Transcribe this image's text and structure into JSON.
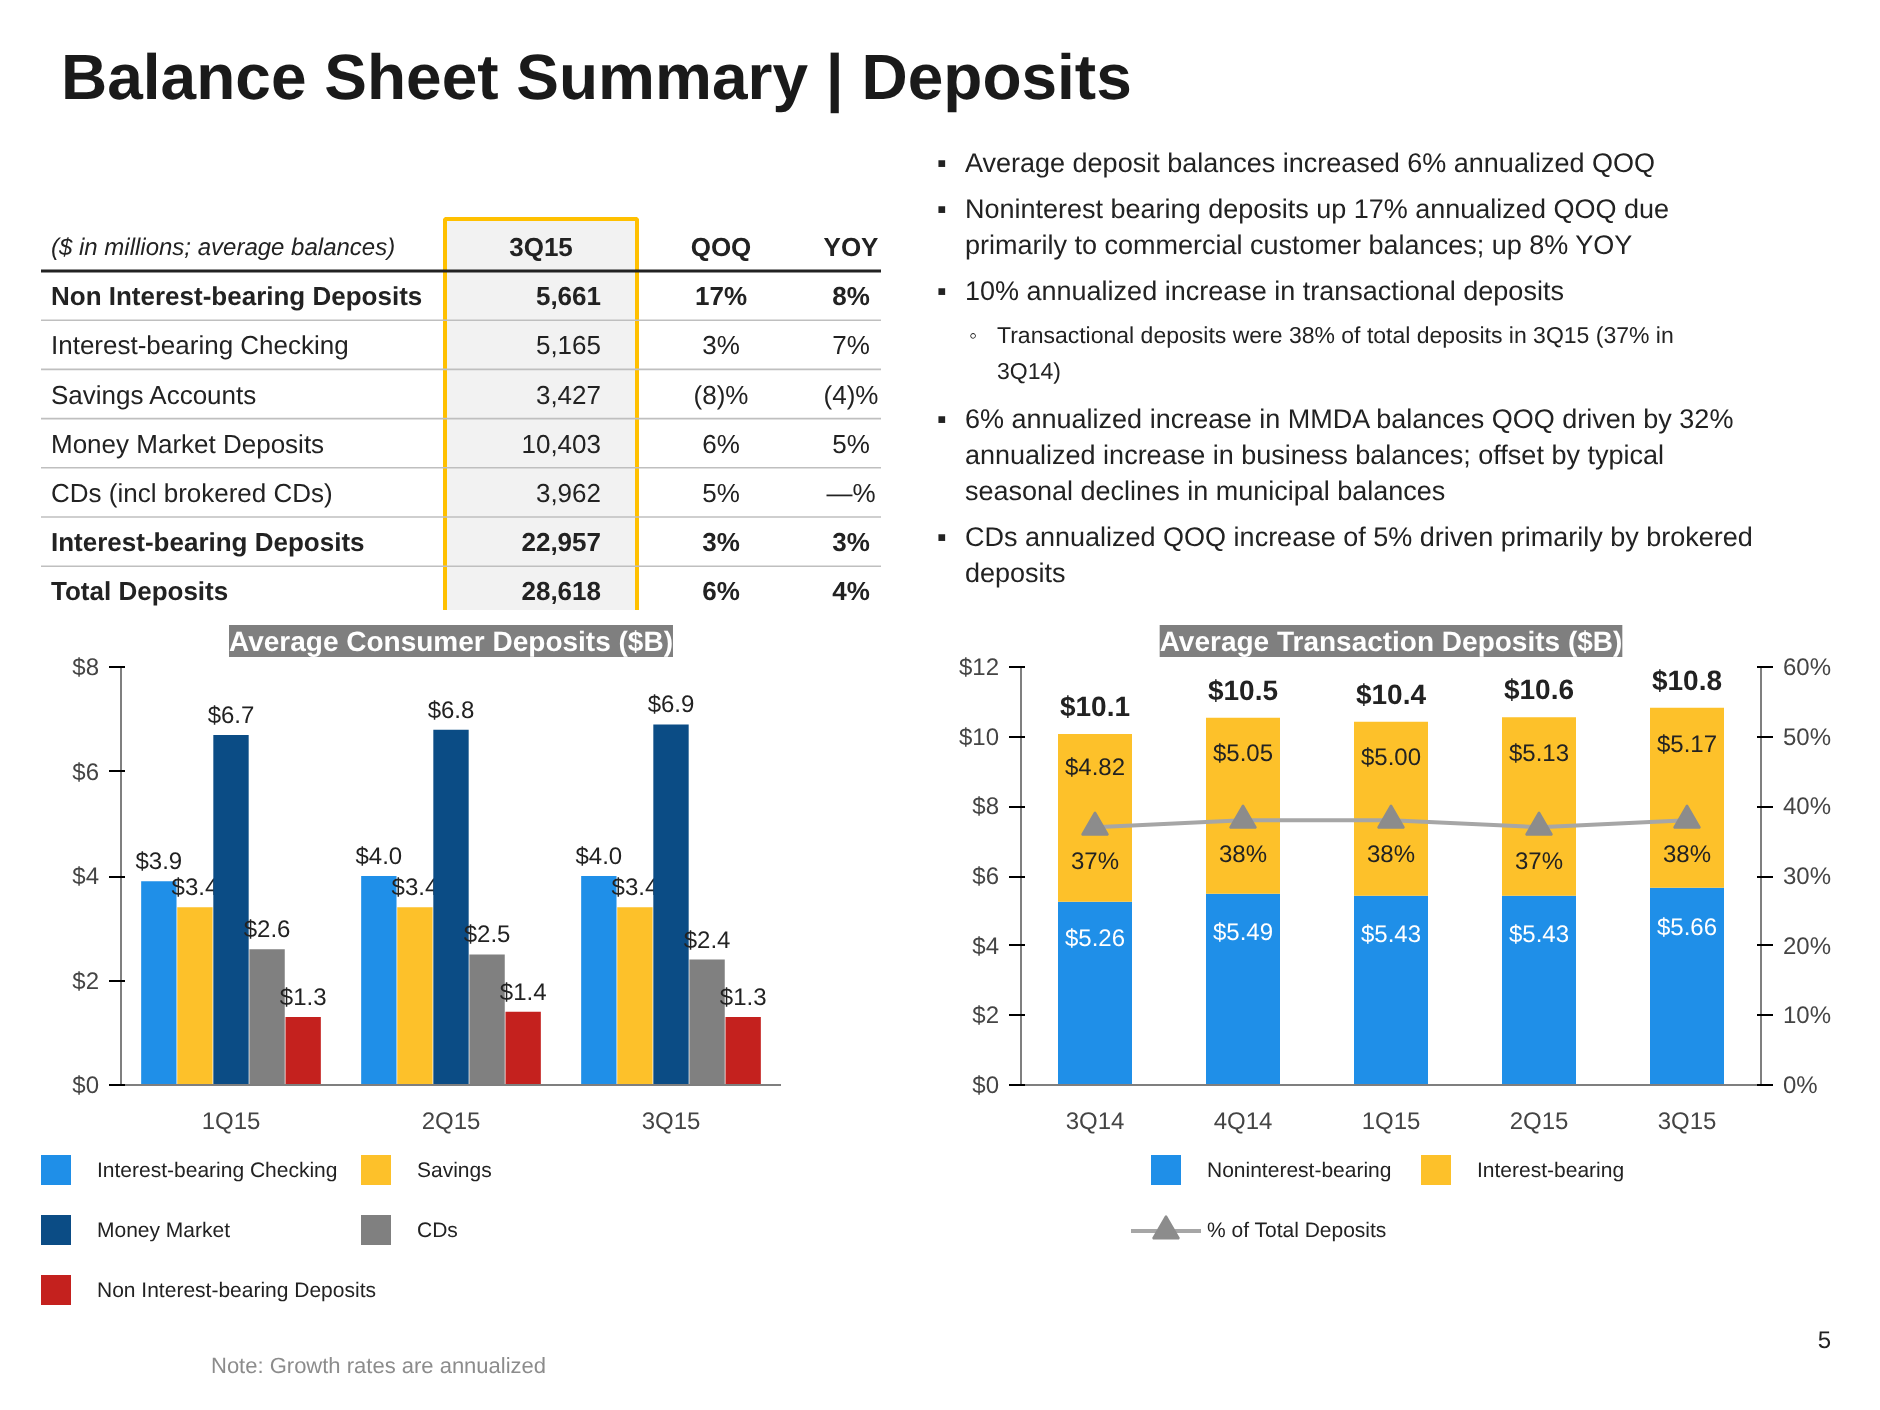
{
  "chart_data": [
    {
      "type": "other",
      "title": "Balance Sheet Summary | Deposits",
      "categories": [
        "($ in millions; average balances)",
        "3Q15",
        "QOQ",
        "YOY"
      ],
      "y_categories": [
        "Non Interest-bearing Deposits",
        "Interest-bearing Checking",
        "Savings Accounts",
        "Money Market Deposits",
        "CDs (incl brokered CDs)",
        "Interest-bearing Deposits",
        "Total Deposits"
      ],
      "cell_labels": [
        [
          "5,661",
          "17%",
          "8%"
        ],
        [
          "5,165",
          "3%",
          "7%"
        ],
        [
          "3,427",
          "(8)%",
          "(4)%"
        ],
        [
          "10,403",
          "6%",
          "5%"
        ],
        [
          "3,962",
          "5%",
          "—%"
        ],
        [
          "22,957",
          "3%",
          "3%"
        ],
        [
          "28,618",
          "6%",
          "4%"
        ]
      ],
      "annotations": [
        "Note: Growth rates are annualized",
        "5"
      ]
    },
    {
      "type": "other",
      "annotations": [
        "▪ Average deposit balances increased 6% annualized QOQ",
        "▪ Noninterest bearing deposits up 17% annualized QOQ due primarily to commercial customer balances; up 8% YOY",
        "▪ 10% annualized increase in transactional deposits",
        "◦ Transactional deposits were 38% of total deposits in 3Q15 (37% in 3Q14)",
        "▪ 6% annualized increase in MMDA balances QOQ driven by 32% annualized increase in business balances; offset by typical seasonal declines in municipal balances",
        "▪ CDs annualized QOQ increase of 5% driven primarily by brokered deposits"
      ]
    },
    {
      "type": "bar",
      "title": "Average Consumer Deposits ($B)",
      "categories": [
        "1Q15",
        "2Q15",
        "3Q15"
      ],
      "ylim": [
        0,
        8
      ],
      "yticks": [
        {
          "value": 0,
          "label": "$0"
        },
        {
          "value": 2,
          "label": "$2"
        },
        {
          "value": 4,
          "label": "$4"
        },
        {
          "value": 6,
          "label": "$6"
        },
        {
          "value": 8,
          "label": "$8"
        }
      ],
      "legend": "bottom",
      "series": [
        {
          "name": "Interest-bearing Checking",
          "color": "#1f8fe8",
          "values": [
            3.9,
            4.0,
            4.0
          ],
          "value_labels": [
            "$3.9",
            "$4.0",
            "$4.0"
          ]
        },
        {
          "name": "Savings",
          "color": "#fdc12a",
          "values": [
            3.4,
            3.4,
            3.4
          ],
          "value_labels": [
            "$3.4",
            "$3.4",
            "$3.4"
          ]
        },
        {
          "name": "Money Market",
          "color": "#0b4c85",
          "values": [
            6.7,
            6.8,
            6.9
          ],
          "value_labels": [
            "$6.7",
            "$6.8",
            "$6.9"
          ]
        },
        {
          "name": "CDs",
          "color": "#808080",
          "values": [
            2.6,
            2.5,
            2.4
          ],
          "value_labels": [
            "$2.6",
            "$2.5",
            "$2.4"
          ]
        },
        {
          "name": "Non Interest-bearing Deposits",
          "color": "#c4211e",
          "values": [
            1.3,
            1.4,
            1.3
          ],
          "value_labels": [
            "$1.3",
            "$1.4",
            "$1.3"
          ]
        }
      ]
    },
    {
      "type": "bar",
      "title": "Average Transaction Deposits ($B)",
      "categories": [
        "3Q14",
        "4Q14",
        "1Q15",
        "2Q15",
        "3Q15"
      ],
      "stacked": true,
      "ylim": [
        0,
        12
      ],
      "yticks": [
        {
          "value": 0,
          "label": "$0"
        },
        {
          "value": 2,
          "label": "$2"
        },
        {
          "value": 4,
          "label": "$4"
        },
        {
          "value": 6,
          "label": "$6"
        },
        {
          "value": 8,
          "label": "$8"
        },
        {
          "value": 10,
          "label": "$10"
        },
        {
          "value": 12,
          "label": "$12"
        }
      ],
      "y2lim": [
        0,
        60
      ],
      "y2ticks": [
        {
          "value": 0,
          "label": "0%"
        },
        {
          "value": 10,
          "label": "10%"
        },
        {
          "value": 20,
          "label": "20%"
        },
        {
          "value": 30,
          "label": "30%"
        },
        {
          "value": 40,
          "label": "40%"
        },
        {
          "value": 50,
          "label": "50%"
        },
        {
          "value": 60,
          "label": "60%"
        }
      ],
      "legend": "bottom",
      "totals": [
        "$10.1",
        "$10.5",
        "$10.4",
        "$10.6",
        "$10.8"
      ],
      "series": [
        {
          "name": "Noninterest-bearing",
          "color": "#1f8fe8",
          "values": [
            5.26,
            5.49,
            5.43,
            5.43,
            5.66
          ],
          "value_labels": [
            "$5.26",
            "$5.49",
            "$5.43",
            "$5.43",
            "$5.66"
          ]
        },
        {
          "name": "Interest-bearing",
          "color": "#fdc12a",
          "values": [
            4.82,
            5.05,
            5.0,
            5.13,
            5.17
          ],
          "value_labels": [
            "$4.82",
            "$5.05",
            "$5.00",
            "$5.13",
            "$5.17"
          ]
        },
        {
          "name": "% of Total Deposits",
          "type": "line",
          "axis": "y2",
          "marker": "triangle",
          "color": "#8c8c8c",
          "values": [
            37,
            38,
            38,
            37,
            38
          ],
          "value_labels": [
            "37%",
            "38%",
            "38%",
            "37%",
            "38%"
          ]
        }
      ]
    }
  ]
}
